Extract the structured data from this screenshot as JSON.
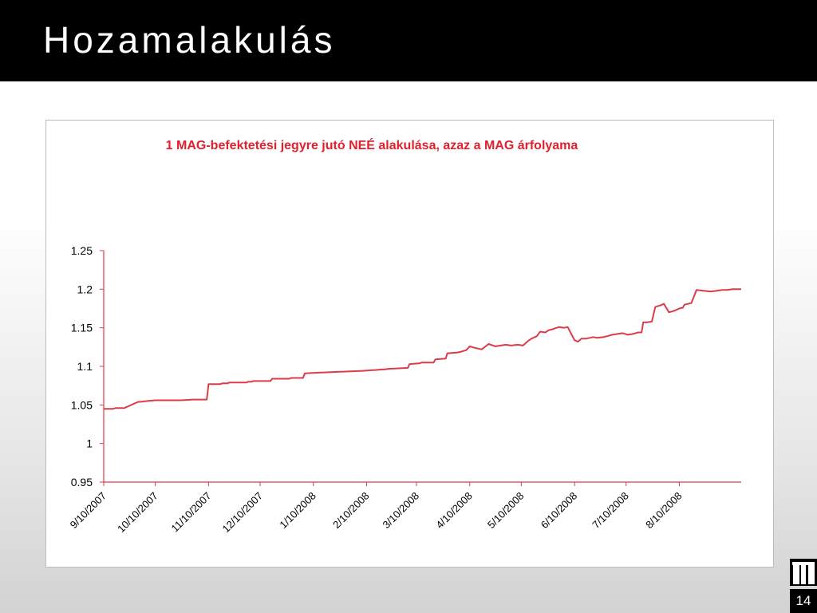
{
  "slide": {
    "title": "Hozamalakulás",
    "page_number": "14"
  },
  "colors": {
    "header": "#000000",
    "series": "#dc3b49",
    "title_text": "#e1202e"
  },
  "logo_icon": "stylized-m-logo-icon",
  "chart_data": {
    "type": "line",
    "title": "1  MAG-befektetési  jegyre jutó NEÉ alakulása, azaz a MAG árfolyama",
    "xlabel": "",
    "ylabel": "",
    "x_tick_labels": [
      "9/10/2007",
      "10/10/2007",
      "11/10/2007",
      "12/10/2007",
      "1/10/2008",
      "2/10/2008",
      "3/10/2008",
      "4/10/2008",
      "5/10/2008",
      "6/10/2008",
      "7/10/2008",
      "8/10/2008"
    ],
    "x_tick_dates": [
      "2007-09-10",
      "2007-10-10",
      "2007-11-10",
      "2007-12-10",
      "2008-01-10",
      "2008-02-10",
      "2008-03-10",
      "2008-04-10",
      "2008-05-10",
      "2008-06-10",
      "2008-07-10",
      "2008-08-10"
    ],
    "xlim": [
      "2007-09-10",
      "2008-09-15"
    ],
    "y_tick_labels": [
      "0.95",
      "1",
      "1.05",
      "1.1",
      "1.15",
      "1.2",
      "1.25"
    ],
    "y_ticks": [
      0.95,
      1.0,
      1.05,
      1.1,
      1.15,
      1.2,
      1.25
    ],
    "ylim": [
      0.95,
      1.25
    ],
    "grid": false,
    "legend": "none",
    "series": [
      {
        "x": [
          "2007-09-10",
          "2007-09-15",
          "2007-09-17",
          "2007-09-22",
          "2007-09-30",
          "2007-10-01",
          "2007-10-05",
          "2007-10-10",
          "2007-10-25",
          "2007-11-01",
          "2007-11-09",
          "2007-11-10",
          "2007-11-17",
          "2007-11-18",
          "2007-11-21",
          "2007-11-22",
          "2007-12-02",
          "2007-12-03",
          "2007-12-05",
          "2007-12-06",
          "2007-12-16",
          "2007-12-17",
          "2007-12-27",
          "2007-12-28",
          "2008-01-04",
          "2008-01-05",
          "2008-01-14",
          "2008-01-15",
          "2008-01-25",
          "2008-01-26",
          "2008-02-06",
          "2008-02-07",
          "2008-02-13",
          "2008-02-14",
          "2008-02-19",
          "2008-02-20",
          "2008-02-24",
          "2008-02-25",
          "2008-03-05",
          "2008-03-06",
          "2008-03-12",
          "2008-03-13",
          "2008-03-20",
          "2008-03-21",
          "2008-03-27",
          "2008-03-28",
          "2008-04-03",
          "2008-04-05",
          "2008-04-08",
          "2008-04-10",
          "2008-04-13",
          "2008-04-17",
          "2008-04-21",
          "2008-04-25",
          "2008-04-28",
          "2008-05-01",
          "2008-05-04",
          "2008-05-08",
          "2008-05-11",
          "2008-05-14",
          "2008-05-16",
          "2008-05-19",
          "2008-05-21",
          "2008-05-24",
          "2008-05-26",
          "2008-05-28",
          "2008-06-01",
          "2008-06-04",
          "2008-06-06",
          "2008-06-10",
          "2008-06-12",
          "2008-06-14",
          "2008-06-17",
          "2008-06-19",
          "2008-06-21",
          "2008-06-23",
          "2008-06-27",
          "2008-07-02",
          "2008-07-05",
          "2008-07-08",
          "2008-07-11",
          "2008-07-14",
          "2008-07-17",
          "2008-07-19",
          "2008-07-20",
          "2008-07-22",
          "2008-07-25",
          "2008-07-27",
          "2008-07-30",
          "2008-08-01",
          "2008-08-04",
          "2008-08-07",
          "2008-08-10",
          "2008-08-12",
          "2008-08-13",
          "2008-08-15",
          "2008-08-17",
          "2008-08-20",
          "2008-08-24",
          "2008-08-28",
          "2008-09-01",
          "2008-09-04",
          "2008-09-07",
          "2008-09-10",
          "2008-09-15"
        ],
        "y": [
          1.045,
          1.045,
          1.046,
          1.046,
          1.054,
          1.054,
          1.055,
          1.056,
          1.056,
          1.057,
          1.057,
          1.077,
          1.077,
          1.078,
          1.078,
          1.079,
          1.079,
          1.08,
          1.08,
          1.081,
          1.081,
          1.084,
          1.084,
          1.085,
          1.085,
          1.091,
          1.092,
          1.092,
          1.093,
          1.093,
          1.094,
          1.094,
          1.095,
          1.095,
          1.096,
          1.096,
          1.097,
          1.097,
          1.098,
          1.103,
          1.104,
          1.105,
          1.105,
          1.109,
          1.11,
          1.117,
          1.118,
          1.119,
          1.121,
          1.126,
          1.124,
          1.122,
          1.129,
          1.126,
          1.127,
          1.128,
          1.127,
          1.128,
          1.127,
          1.133,
          1.136,
          1.139,
          1.145,
          1.144,
          1.147,
          1.148,
          1.151,
          1.15,
          1.151,
          1.134,
          1.132,
          1.136,
          1.136,
          1.137,
          1.138,
          1.137,
          1.138,
          1.141,
          1.142,
          1.143,
          1.141,
          1.142,
          1.144,
          1.144,
          1.157,
          1.157,
          1.158,
          1.177,
          1.179,
          1.181,
          1.17,
          1.172,
          1.175,
          1.176,
          1.18,
          1.181,
          1.182,
          1.199,
          1.198,
          1.197,
          1.198,
          1.199,
          1.199,
          1.2,
          1.2
        ]
      }
    ]
  }
}
